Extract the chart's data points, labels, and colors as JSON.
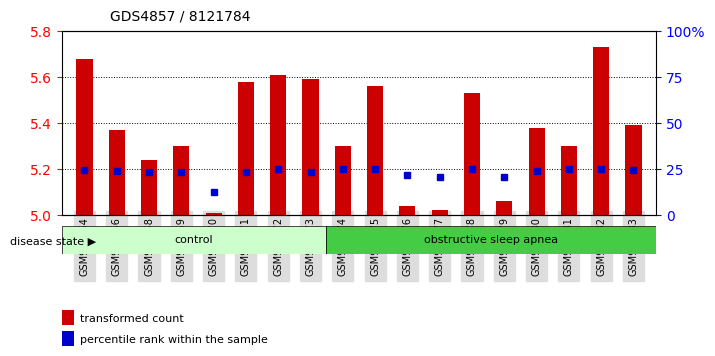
{
  "title": "GDS4857 / 8121784",
  "samples": [
    "GSM949164",
    "GSM949166",
    "GSM949168",
    "GSM949169",
    "GSM949170",
    "GSM949171",
    "GSM949172",
    "GSM949173",
    "GSM949174",
    "GSM949175",
    "GSM949176",
    "GSM949177",
    "GSM949178",
    "GSM949179",
    "GSM949180",
    "GSM949181",
    "GSM949182",
    "GSM949183"
  ],
  "red_values": [
    5.68,
    5.37,
    5.24,
    5.3,
    5.01,
    5.58,
    5.61,
    5.59,
    5.3,
    5.56,
    5.04,
    5.02,
    5.53,
    5.06,
    5.38,
    5.3,
    5.73,
    5.39
  ],
  "blue_values": [
    5.195,
    5.19,
    5.185,
    5.185,
    5.1,
    5.185,
    5.2,
    5.185,
    5.2,
    5.2,
    5.175,
    5.165,
    5.2,
    5.165,
    5.19,
    5.2,
    5.2,
    5.195
  ],
  "ylim_left": [
    5.0,
    5.8
  ],
  "ylim_right": [
    0,
    100
  ],
  "yticks_left": [
    5.0,
    5.2,
    5.4,
    5.6,
    5.8
  ],
  "yticks_right": [
    0,
    25,
    50,
    75,
    100
  ],
  "ytick_right_labels": [
    "0",
    "25",
    "50",
    "75",
    "100%"
  ],
  "control_count": 8,
  "control_label": "control",
  "apnea_label": "obstructive sleep apnea",
  "disease_state_label": "disease state",
  "legend_red": "transformed count",
  "legend_blue": "percentile rank within the sample",
  "bar_color": "#CC0000",
  "blue_color": "#0000CC",
  "control_bg": "#CCFFCC",
  "apnea_bg": "#44CC44",
  "bar_width": 0.5,
  "base": 5.0
}
